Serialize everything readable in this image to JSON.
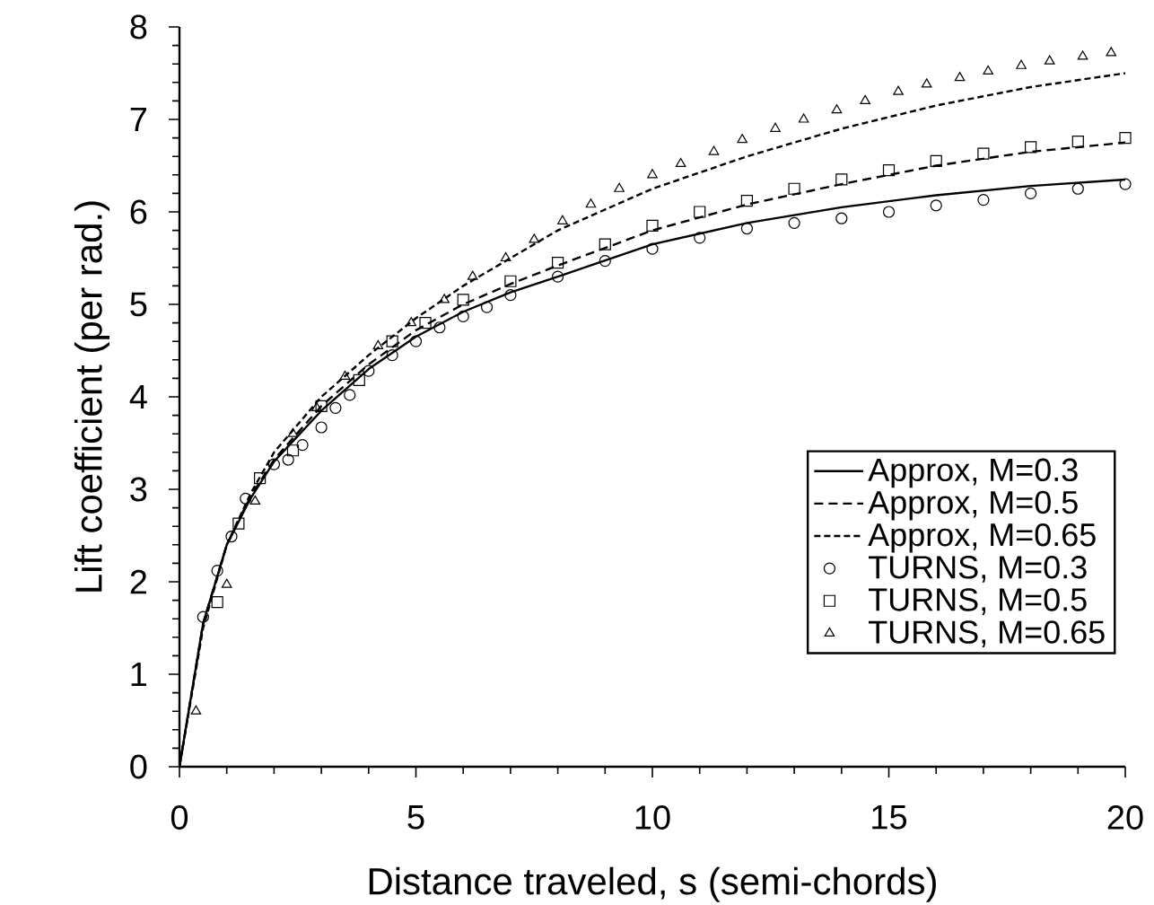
{
  "chart_data": {
    "type": "line",
    "xlabel": "Distance traveled, s (semi-chords)",
    "ylabel": "Lift coefficient (per rad.)",
    "xlim": [
      0,
      20
    ],
    "ylim": [
      0,
      8
    ],
    "xticks": [
      0,
      5,
      10,
      15,
      20
    ],
    "yticks": [
      0,
      1,
      2,
      3,
      4,
      5,
      6,
      7,
      8
    ],
    "grid": false,
    "legend": "right",
    "series": [
      {
        "name": "Approx, M=0.3",
        "line_style": "solid",
        "marker": "none",
        "color": "#000000",
        "x": [
          0,
          0.5,
          1,
          1.5,
          2,
          3,
          4,
          5,
          6,
          7,
          8,
          10,
          12,
          14,
          16,
          18,
          20
        ],
        "values": [
          0,
          1.55,
          2.4,
          2.9,
          3.3,
          3.85,
          4.3,
          4.65,
          4.92,
          5.13,
          5.3,
          5.65,
          5.88,
          6.05,
          6.18,
          6.28,
          6.35
        ]
      },
      {
        "name": "Approx, M=0.5",
        "line_style": "dashed",
        "marker": "none",
        "color": "#000000",
        "x": [
          0,
          0.5,
          1,
          1.5,
          2,
          3,
          4,
          5,
          6,
          7,
          8,
          10,
          12,
          14,
          16,
          18,
          20
        ],
        "values": [
          0,
          1.55,
          2.4,
          2.92,
          3.32,
          3.9,
          4.35,
          4.72,
          5.0,
          5.22,
          5.42,
          5.8,
          6.08,
          6.3,
          6.5,
          6.65,
          6.75
        ]
      },
      {
        "name": "Approx, M=0.65",
        "line_style": "dotted",
        "marker": "none",
        "color": "#000000",
        "x": [
          0,
          0.5,
          1,
          1.5,
          2,
          3,
          4,
          5,
          6,
          7,
          8,
          10,
          12,
          14,
          16,
          18,
          20
        ],
        "values": [
          0,
          1.5,
          2.4,
          2.95,
          3.4,
          4.0,
          4.45,
          4.85,
          5.2,
          5.5,
          5.8,
          6.25,
          6.6,
          6.9,
          7.15,
          7.35,
          7.5
        ]
      },
      {
        "name": "TURNS, M=0.3",
        "type": "scatter",
        "marker": "circle",
        "color": "#000000",
        "x": [
          0.5,
          0.8,
          1.1,
          1.4,
          2,
          2.3,
          2.6,
          3,
          3.3,
          3.6,
          4,
          4.5,
          5,
          5.5,
          6,
          6.5,
          7,
          8,
          9,
          10,
          11,
          12,
          13,
          14,
          15,
          16,
          17,
          18,
          19,
          20
        ],
        "values": [
          1.62,
          2.12,
          2.49,
          2.9,
          3.27,
          3.32,
          3.48,
          3.67,
          3.88,
          4.02,
          4.28,
          4.45,
          4.6,
          4.75,
          4.87,
          4.97,
          5.1,
          5.3,
          5.47,
          5.6,
          5.72,
          5.82,
          5.88,
          5.93,
          6.0,
          6.07,
          6.13,
          6.2,
          6.25,
          6.3
        ]
      },
      {
        "name": "TURNS, M=0.5",
        "type": "scatter",
        "marker": "square",
        "color": "#000000",
        "x": [
          0.8,
          1.25,
          1.7,
          2.4,
          3.0,
          3.8,
          4.5,
          5.2,
          6,
          7,
          8,
          9,
          10,
          11,
          12,
          13,
          14,
          15,
          16,
          17,
          18,
          19,
          20
        ],
        "values": [
          1.78,
          2.63,
          3.12,
          3.42,
          3.9,
          4.18,
          4.6,
          4.8,
          5.05,
          5.25,
          5.45,
          5.65,
          5.85,
          6.0,
          6.12,
          6.25,
          6.35,
          6.45,
          6.55,
          6.63,
          6.7,
          6.76,
          6.8
        ]
      },
      {
        "name": "TURNS, M=0.65",
        "type": "scatter",
        "marker": "triangle",
        "color": "#000000",
        "x": [
          0.35,
          1.0,
          1.6,
          2.4,
          2.9,
          3.5,
          4.2,
          4.9,
          5.6,
          6.2,
          6.9,
          7.5,
          8.1,
          8.7,
          9.3,
          10.0,
          10.6,
          11.3,
          11.9,
          12.6,
          13.2,
          13.9,
          14.5,
          15.2,
          15.8,
          16.5,
          17.1,
          17.8,
          18.4,
          19.1,
          19.7
        ],
        "values": [
          0.6,
          1.97,
          2.87,
          3.6,
          3.88,
          4.22,
          4.55,
          4.8,
          5.05,
          5.3,
          5.5,
          5.7,
          5.9,
          6.08,
          6.25,
          6.4,
          6.52,
          6.65,
          6.78,
          6.9,
          7.0,
          7.1,
          7.2,
          7.3,
          7.38,
          7.45,
          7.52,
          7.58,
          7.63,
          7.68,
          7.72
        ]
      }
    ]
  }
}
